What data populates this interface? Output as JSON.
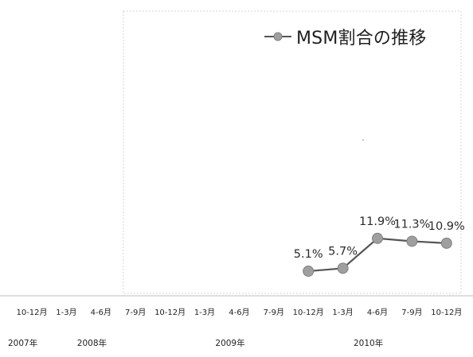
{
  "chart_data": {
    "type": "line",
    "title": "",
    "series": [
      {
        "name": "MSM割合の推移",
        "values": [
          null,
          null,
          null,
          null,
          null,
          null,
          null,
          null,
          5.1,
          5.7,
          11.9,
          11.3,
          10.9
        ]
      }
    ],
    "categories": [
      "10-12月",
      "1-3月",
      "4-6月",
      "7-9月",
      "10-12月",
      "1-3月",
      "4-6月",
      "7-9月",
      "10-12月",
      "1-3月",
      "4-6月",
      "7-9月",
      "10-12月"
    ],
    "x_groups": [
      {
        "label": "2007年",
        "start": 0
      },
      {
        "label": "2008年",
        "start": 2
      },
      {
        "label": "2009年",
        "start": 6
      },
      {
        "label": "2010年",
        "start": 10
      }
    ],
    "data_labels": [
      "5.1%",
      "5.7%",
      "11.9%",
      "11.3%",
      "10.9%"
    ],
    "ylim": [
      0,
      60
    ],
    "grid": false,
    "legend": "top-right",
    "colors": {
      "line": "#555555",
      "marker_fill": "#9f9f9f",
      "marker_stroke": "#808080",
      "border": "#d6d6d6",
      "axis": "#bfbfbf",
      "text": "#1f1f1f"
    }
  }
}
